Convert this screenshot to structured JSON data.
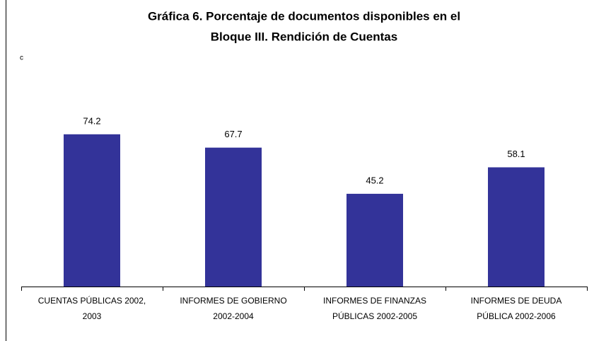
{
  "chart_data": {
    "type": "bar",
    "title": [
      "Gráfica 6. Porcentaje de documentos disponibles en el",
      "Bloque III. Rendición de Cuentas"
    ],
    "annotation": "c",
    "categories": [
      "CUENTAS PÚBLICAS 2002, 2003",
      "INFORMES DE GOBIERNO 2002-2004",
      "INFORMES DE FINANZAS PÚBLICAS 2002-2005",
      "INFORMES DE DEUDA PÚBLICA 2002-2006"
    ],
    "values": [
      74.2,
      67.7,
      45.2,
      58.1
    ],
    "color": "#333399",
    "ylim": [
      0,
      100
    ]
  }
}
